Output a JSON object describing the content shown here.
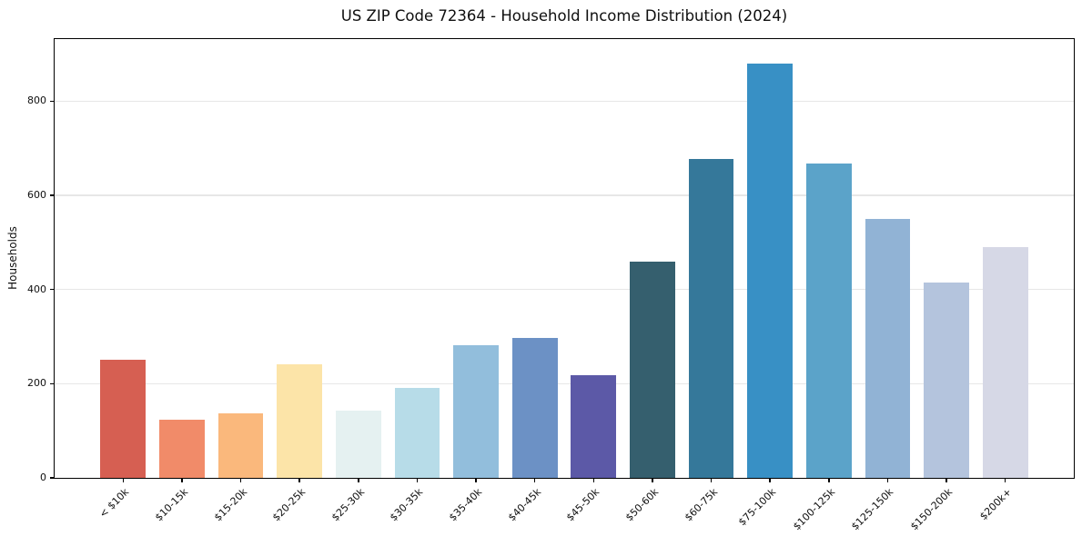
{
  "chart_data": {
    "type": "bar",
    "title": "US ZIP Code 72364 - Household Income Distribution (2024)",
    "xlabel": "",
    "ylabel": "Households",
    "categories": [
      "< $10k",
      "$10-15k",
      "$15-20k",
      "$20-25k",
      "$25-30k",
      "$30-35k",
      "$35-40k",
      "$40-45k",
      "$45-50k",
      "$50-60k",
      "$60-75k",
      "$75-100k",
      "$100-125k",
      "$125-150k",
      "$150-200k",
      "$200k+"
    ],
    "values": [
      250,
      124,
      137,
      241,
      142,
      192,
      281,
      297,
      219,
      459,
      677,
      880,
      668,
      550,
      414,
      491
    ],
    "bar_colors": [
      "#d65f52",
      "#f18b69",
      "#fab87c",
      "#fce4a8",
      "#e5f1f1",
      "#b7dce8",
      "#92bedc",
      "#6c91c5",
      "#5c59a7",
      "#355f6e",
      "#35789a",
      "#3890c5",
      "#5ba3c9",
      "#91b3d5",
      "#b4c4dd",
      "#d6d8e6"
    ],
    "yticks": [
      0,
      200,
      400,
      600,
      800
    ],
    "ylim": [
      0,
      932
    ],
    "grid": "horizontal",
    "gridline_color": "#e7e7e7",
    "legend": "none",
    "x_tick_rotation_deg": 45
  }
}
